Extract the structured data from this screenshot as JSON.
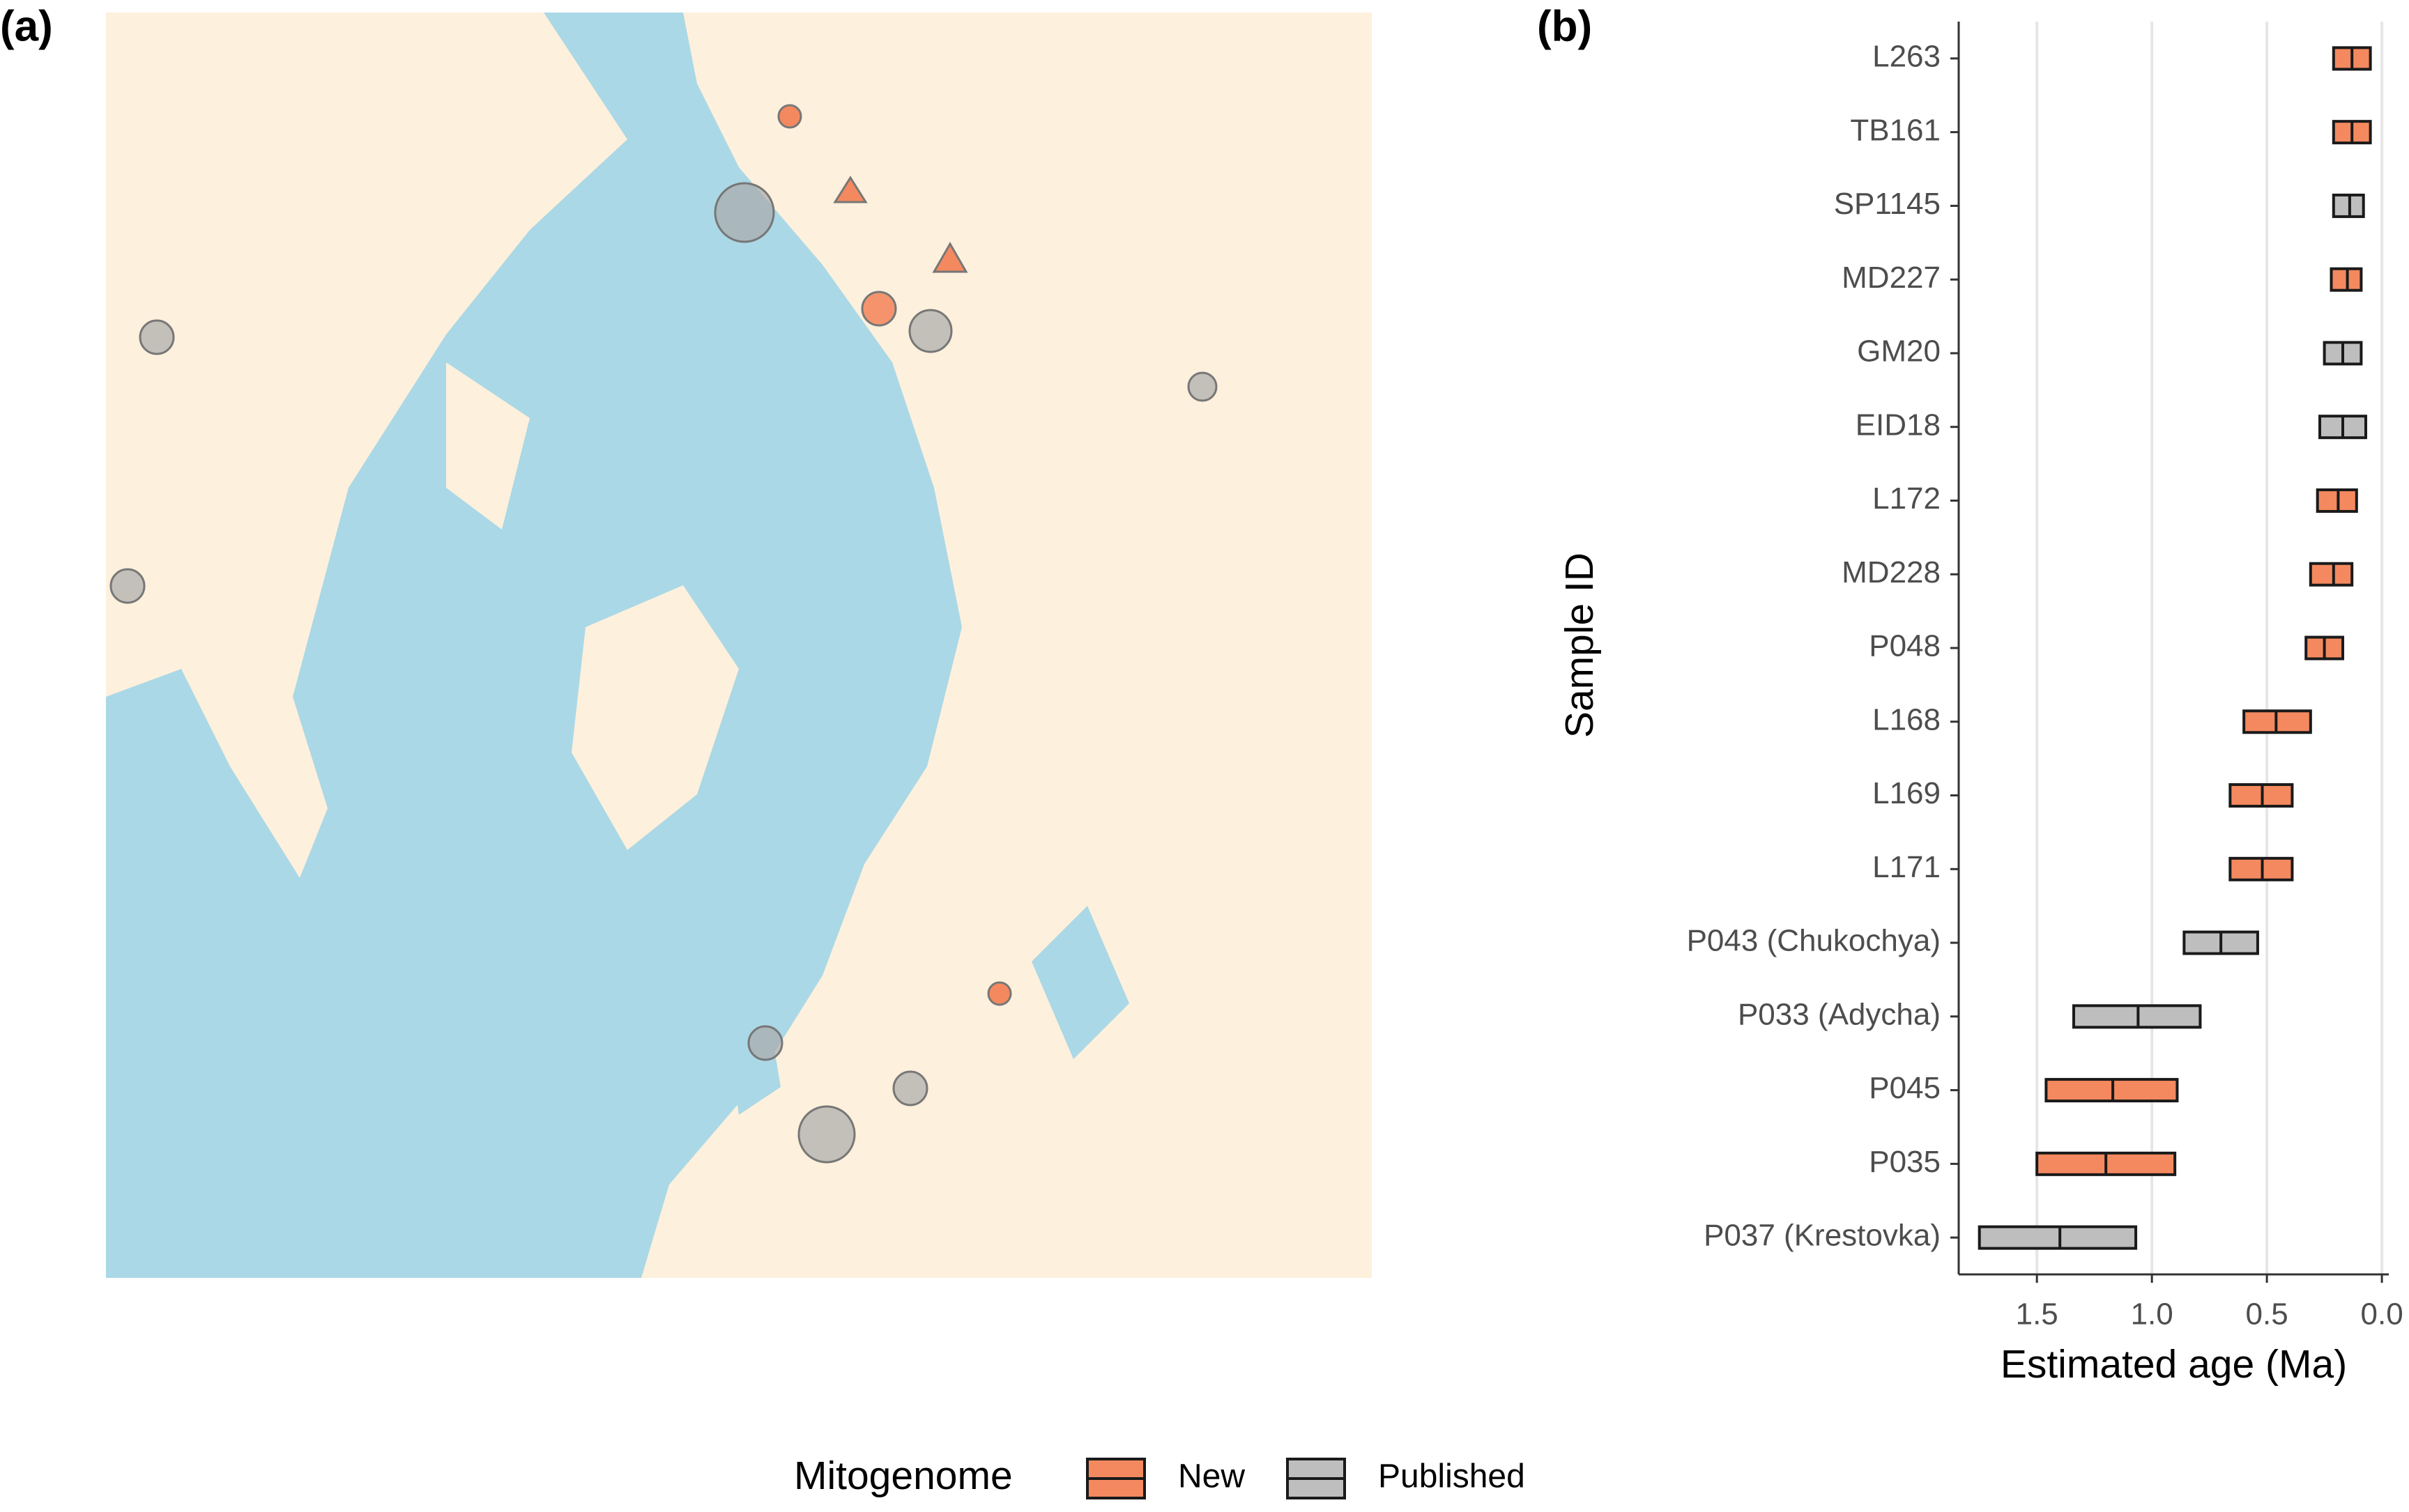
{
  "panel_a": {
    "label": "(a)"
  },
  "chart_data": {
    "type": "crossbar",
    "label": "(b)",
    "x_label": "Estimated age (Ma)",
    "y_label": "Sample ID",
    "categories": [
      "L263",
      "TB161",
      "SP1145",
      "MD227",
      "GM20",
      "EID18",
      "L172",
      "MD228",
      "P048",
      "L168",
      "L169",
      "L171",
      "P043 (Chukochya)",
      "P033 (Adycha)",
      "P045",
      "P035",
      "P037 (Krestovka)"
    ],
    "status": [
      "New",
      "New",
      "Published",
      "New",
      "Published",
      "Published",
      "New",
      "New",
      "New",
      "New",
      "New",
      "New",
      "Published",
      "Published",
      "New",
      "New",
      "Published"
    ],
    "low": [
      0.05,
      0.05,
      0.08,
      0.09,
      0.09,
      0.07,
      0.11,
      0.13,
      0.17,
      0.31,
      0.39,
      0.39,
      0.54,
      0.79,
      0.89,
      0.9,
      1.07
    ],
    "mid": [
      0.13,
      0.13,
      0.14,
      0.15,
      0.17,
      0.17,
      0.19,
      0.21,
      0.25,
      0.46,
      0.52,
      0.52,
      0.7,
      1.06,
      1.17,
      1.2,
      1.4
    ],
    "high": [
      0.21,
      0.21,
      0.21,
      0.22,
      0.25,
      0.27,
      0.28,
      0.31,
      0.33,
      0.6,
      0.66,
      0.66,
      0.86,
      1.34,
      1.46,
      1.5,
      1.75
    ],
    "xlim": [
      1.84,
      -0.03
    ],
    "xticks": [
      1.5,
      {
        "value": 1,
        "label": "1.0"
      },
      0.5,
      {
        "value": 0,
        "label": "0.0"
      }
    ],
    "grid": true,
    "legend": {
      "title": "Mitogenome",
      "position": "bottom",
      "items": [
        {
          "name": "New",
          "color": "#f4895f"
        },
        {
          "name": "Published",
          "color": "#bebebe"
        }
      ]
    }
  }
}
